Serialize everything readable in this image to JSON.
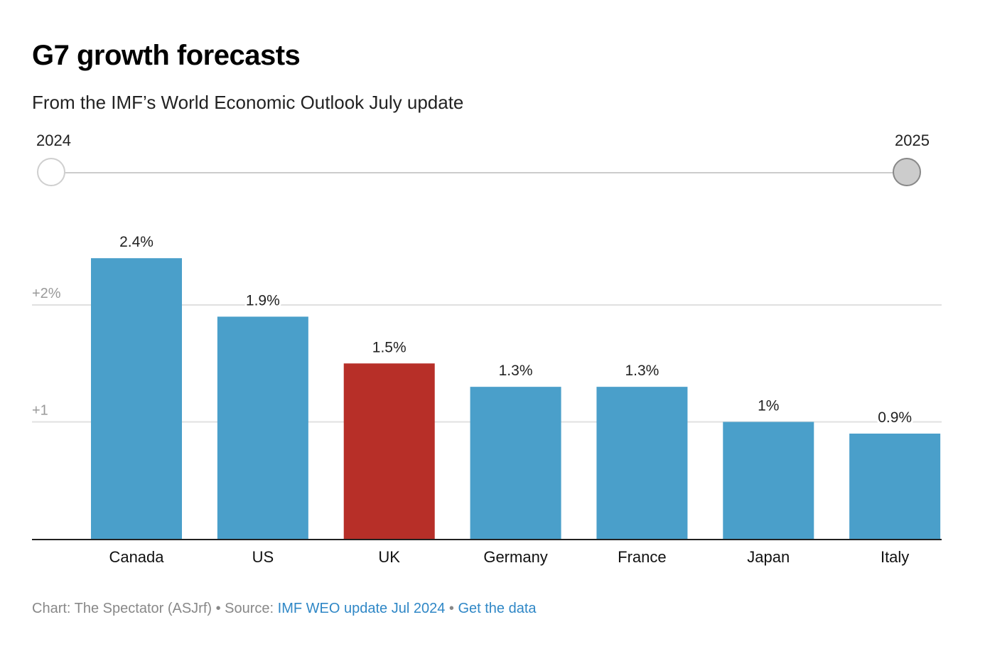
{
  "header": {
    "title": "G7 growth forecasts",
    "subtitle": "From the IMF’s World Economic Outlook July update"
  },
  "year_slider": {
    "start_label": "2024",
    "end_label": "2025",
    "selected": "2025"
  },
  "colors": {
    "bar_default": "#4a9fca",
    "bar_highlight": "#b72f28",
    "gridline": "#e0e0e0",
    "axis": "#222222",
    "tick_label": "#999999",
    "link": "#2f87c6"
  },
  "chart_data": {
    "type": "bar",
    "title": "G7 growth forecasts",
    "subtitle": "From the IMF’s World Economic Outlook July update",
    "categories": [
      "Canada",
      "US",
      "UK",
      "Germany",
      "France",
      "Japan",
      "Italy"
    ],
    "values": [
      2.4,
      1.9,
      1.5,
      1.3,
      1.3,
      1.0,
      0.9
    ],
    "value_labels": [
      "2.4%",
      "1.9%",
      "1.5%",
      "1.3%",
      "1.3%",
      "1%",
      "0.9%"
    ],
    "highlight": "UK",
    "xlabel": "",
    "ylabel": "",
    "ylim": [
      0,
      2.6
    ],
    "yticks": [
      1,
      2
    ],
    "ytick_labels": [
      "+1",
      "+2%"
    ],
    "grid": true,
    "year": "2025"
  },
  "footer": {
    "prefix": "Chart: The Spectator (ASJrf) • Source: ",
    "source_link": "IMF WEO update Jul 2024",
    "separator": " • ",
    "data_link": "Get the data"
  }
}
